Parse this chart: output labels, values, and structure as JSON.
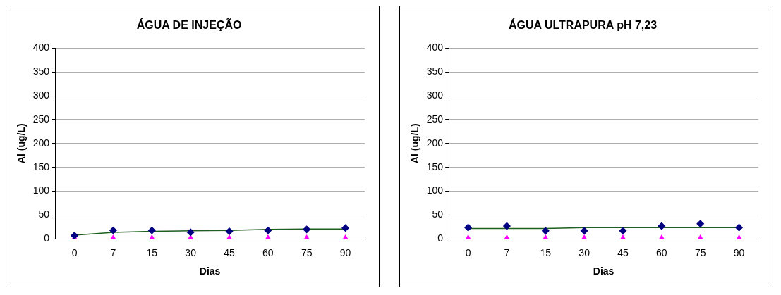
{
  "chart_data": [
    {
      "type": "line",
      "title": "ÁGUA DE INJEÇÃO",
      "xlabel": "Dias",
      "ylabel": "Al (ug/L)",
      "categories": [
        "0",
        "7",
        "15",
        "30",
        "45",
        "60",
        "75",
        "90"
      ],
      "ylim": [
        0,
        400
      ],
      "yticks": [
        0,
        50,
        100,
        150,
        200,
        250,
        300,
        350,
        400
      ],
      "grid": "y",
      "legend": false,
      "series": [
        {
          "type": "scatter",
          "marker": "diamond",
          "color": "#000080",
          "values": [
            7,
            18,
            18,
            14,
            16,
            18,
            20,
            23
          ]
        },
        {
          "type": "scatter",
          "marker": "triangle",
          "color": "#ff00ff",
          "values": [
            0,
            0,
            0,
            0,
            0,
            0,
            0,
            0
          ]
        },
        {
          "marker": "none",
          "color": "#1f5f1f",
          "values": [
            8,
            14,
            16,
            17,
            18,
            20,
            21,
            21
          ]
        }
      ]
    },
    {
      "type": "line",
      "title": "ÁGUA ULTRAPURA pH 7,23",
      "xlabel": "Dias",
      "ylabel": "Al (ug/L)",
      "categories": [
        "0",
        "7",
        "15",
        "30",
        "45",
        "60",
        "75",
        "90"
      ],
      "ylim": [
        0,
        400
      ],
      "yticks": [
        0,
        50,
        100,
        150,
        200,
        250,
        300,
        350,
        400
      ],
      "grid": "y",
      "legend": false,
      "series": [
        {
          "type": "scatter",
          "marker": "diamond",
          "color": "#000080",
          "values": [
            24,
            27,
            17,
            17,
            17,
            27,
            32,
            24
          ]
        },
        {
          "type": "scatter",
          "marker": "triangle",
          "color": "#ff00ff",
          "values": [
            0,
            0,
            0,
            0,
            0,
            0,
            0,
            0
          ]
        },
        {
          "marker": "none",
          "color": "#1f5f1f",
          "values": [
            22,
            22,
            22,
            24,
            24,
            24,
            24,
            24
          ]
        }
      ]
    }
  ]
}
